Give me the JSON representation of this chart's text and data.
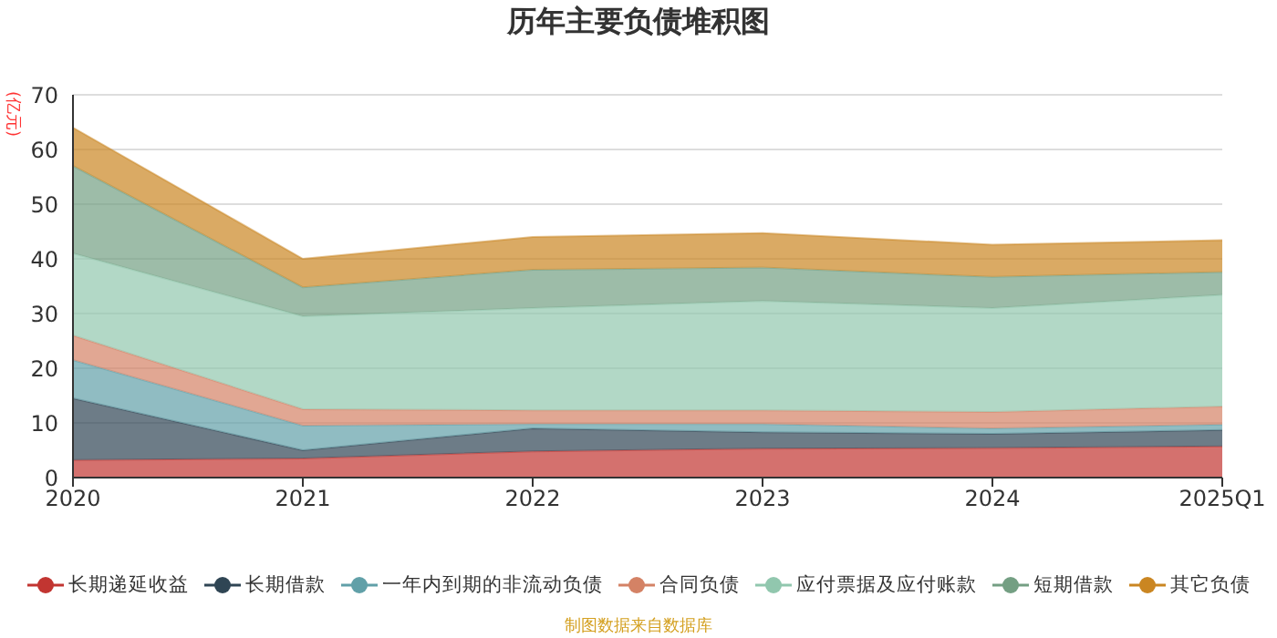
{
  "chart_data": {
    "type": "area",
    "title": "历年主要负债堆积图",
    "ylabel": "(亿元)",
    "categories": [
      "2020",
      "2021",
      "2022",
      "2023",
      "2024",
      "2025Q1"
    ],
    "stacked": true,
    "ylim": [
      0,
      70
    ],
    "yticks": [
      0,
      10,
      20,
      30,
      40,
      50,
      60,
      70
    ],
    "grid": "y",
    "legend": "bottom",
    "annotations": [
      "制图数据来自数据库"
    ],
    "series": [
      {
        "name": "长期递延收益",
        "color": "#c23531",
        "values": [
          3.2,
          3.5,
          4.8,
          5.3,
          5.4,
          5.7
        ]
      },
      {
        "name": "长期借款",
        "color": "#2f4554",
        "values": [
          11.3,
          1.5,
          4.2,
          3,
          2.6,
          3
        ]
      },
      {
        "name": "一年内到期的非流动负债",
        "color": "#61a0a8",
        "values": [
          7,
          4.5,
          0.8,
          1.5,
          1,
          1
        ]
      },
      {
        "name": "合同负债",
        "color": "#d48265",
        "values": [
          4.5,
          3,
          2.5,
          2.5,
          3,
          3.3
        ]
      },
      {
        "name": "应付票据及应付账款",
        "color": "#91c7ae",
        "values": [
          15,
          17,
          18.7,
          20,
          19,
          20.4
        ]
      },
      {
        "name": "短期借款",
        "color": "#749f83",
        "values": [
          16,
          5.3,
          7,
          6.1,
          5.7,
          4.2
        ]
      },
      {
        "name": "其它负债",
        "color": "#ca8622",
        "values": [
          7,
          5.2,
          6,
          6.3,
          5.9,
          5.8
        ]
      }
    ]
  }
}
